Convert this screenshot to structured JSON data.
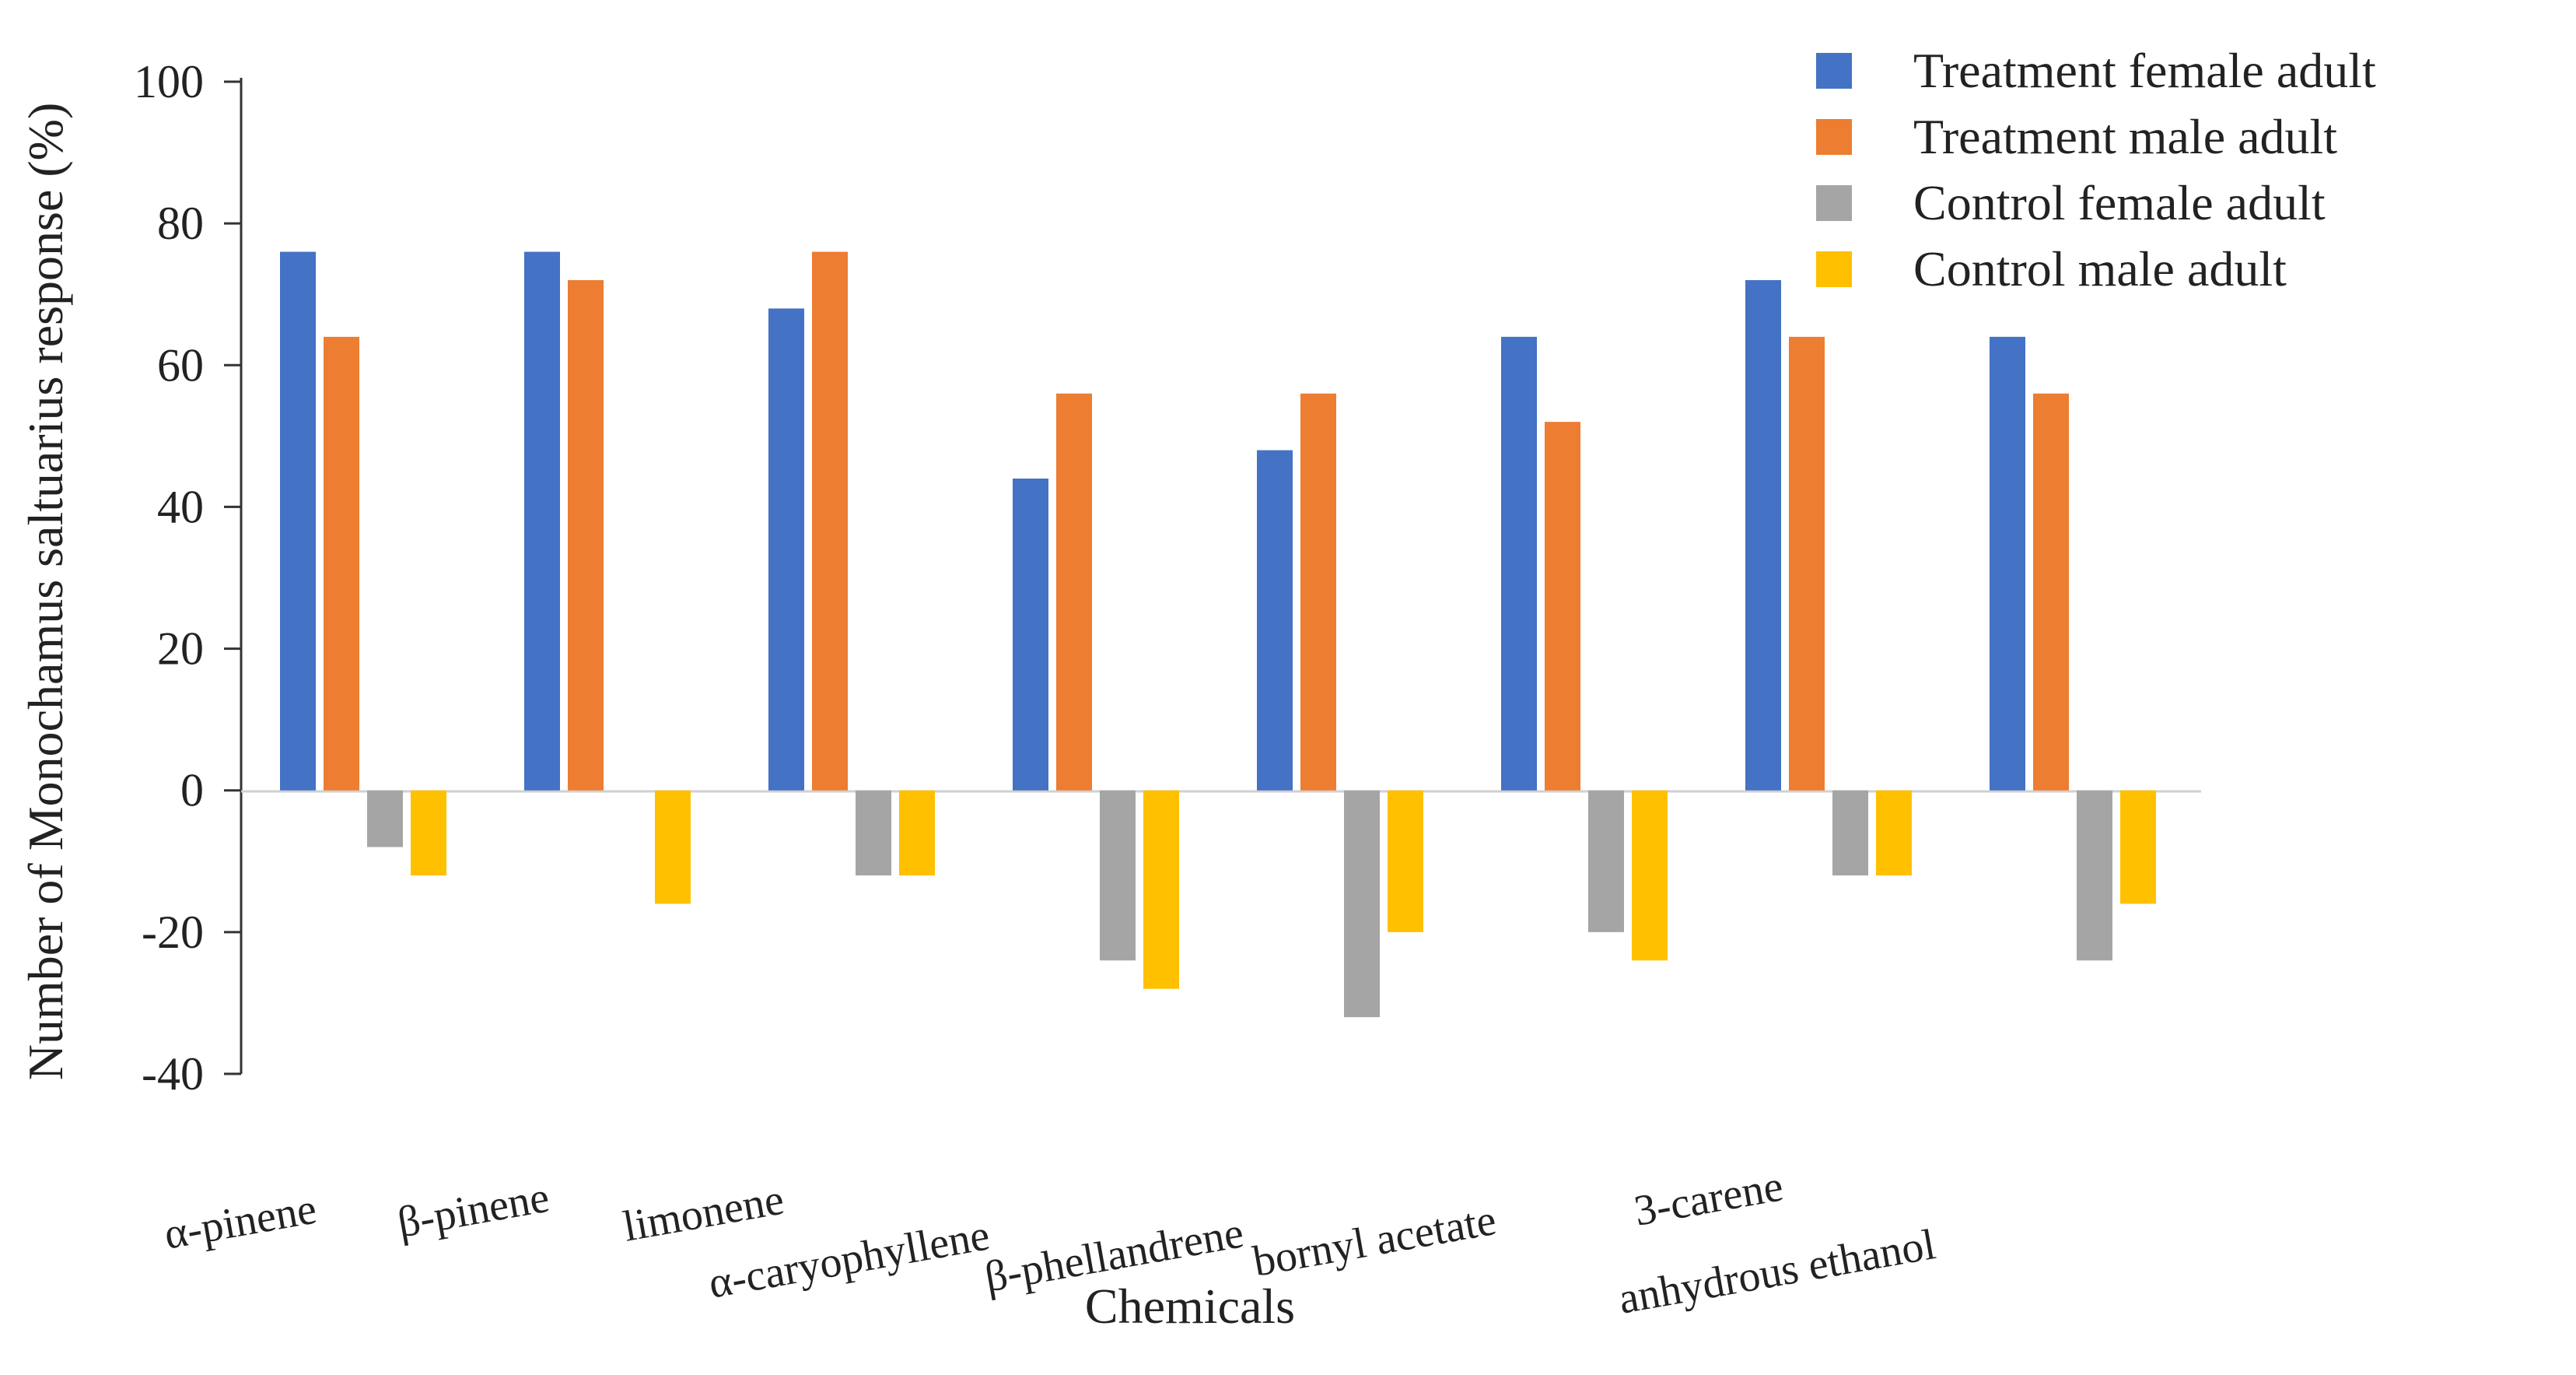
{
  "chart_data": {
    "type": "bar",
    "title": "",
    "xlabel": "Chemicals",
    "ylabel": "Number of Monochamus saltuarius response (%)",
    "ylim": [
      -40,
      100
    ],
    "yticks": [
      "100",
      "80",
      "60",
      "40",
      "20",
      "0",
      "-20",
      "-40"
    ],
    "categories": [
      "α-pinene",
      "β-pinene",
      "limonene",
      "α-caryophyllene",
      "β-phellandrene",
      "bornyl acetate",
      "3-carene",
      "anhydrous ethanol"
    ],
    "series": [
      {
        "name": "Treatment female adult",
        "color": "#4472C4",
        "values": [
          76,
          76,
          68,
          44,
          48,
          64,
          72,
          64
        ]
      },
      {
        "name": "Treatment male adult",
        "color": "#ED7D31",
        "values": [
          64,
          72,
          76,
          56,
          56,
          52,
          64,
          56
        ]
      },
      {
        "name": "Control female adult",
        "color": "#A5A5A5",
        "values": [
          -8,
          0,
          -12,
          -24,
          -32,
          -20,
          -12,
          -24
        ]
      },
      {
        "name": "Control male adult",
        "color": "#FFC000",
        "values": [
          -12,
          -16,
          -12,
          -28,
          -20,
          -24,
          -12,
          -16
        ]
      }
    ],
    "legend_position": "top-right",
    "grid": false
  }
}
